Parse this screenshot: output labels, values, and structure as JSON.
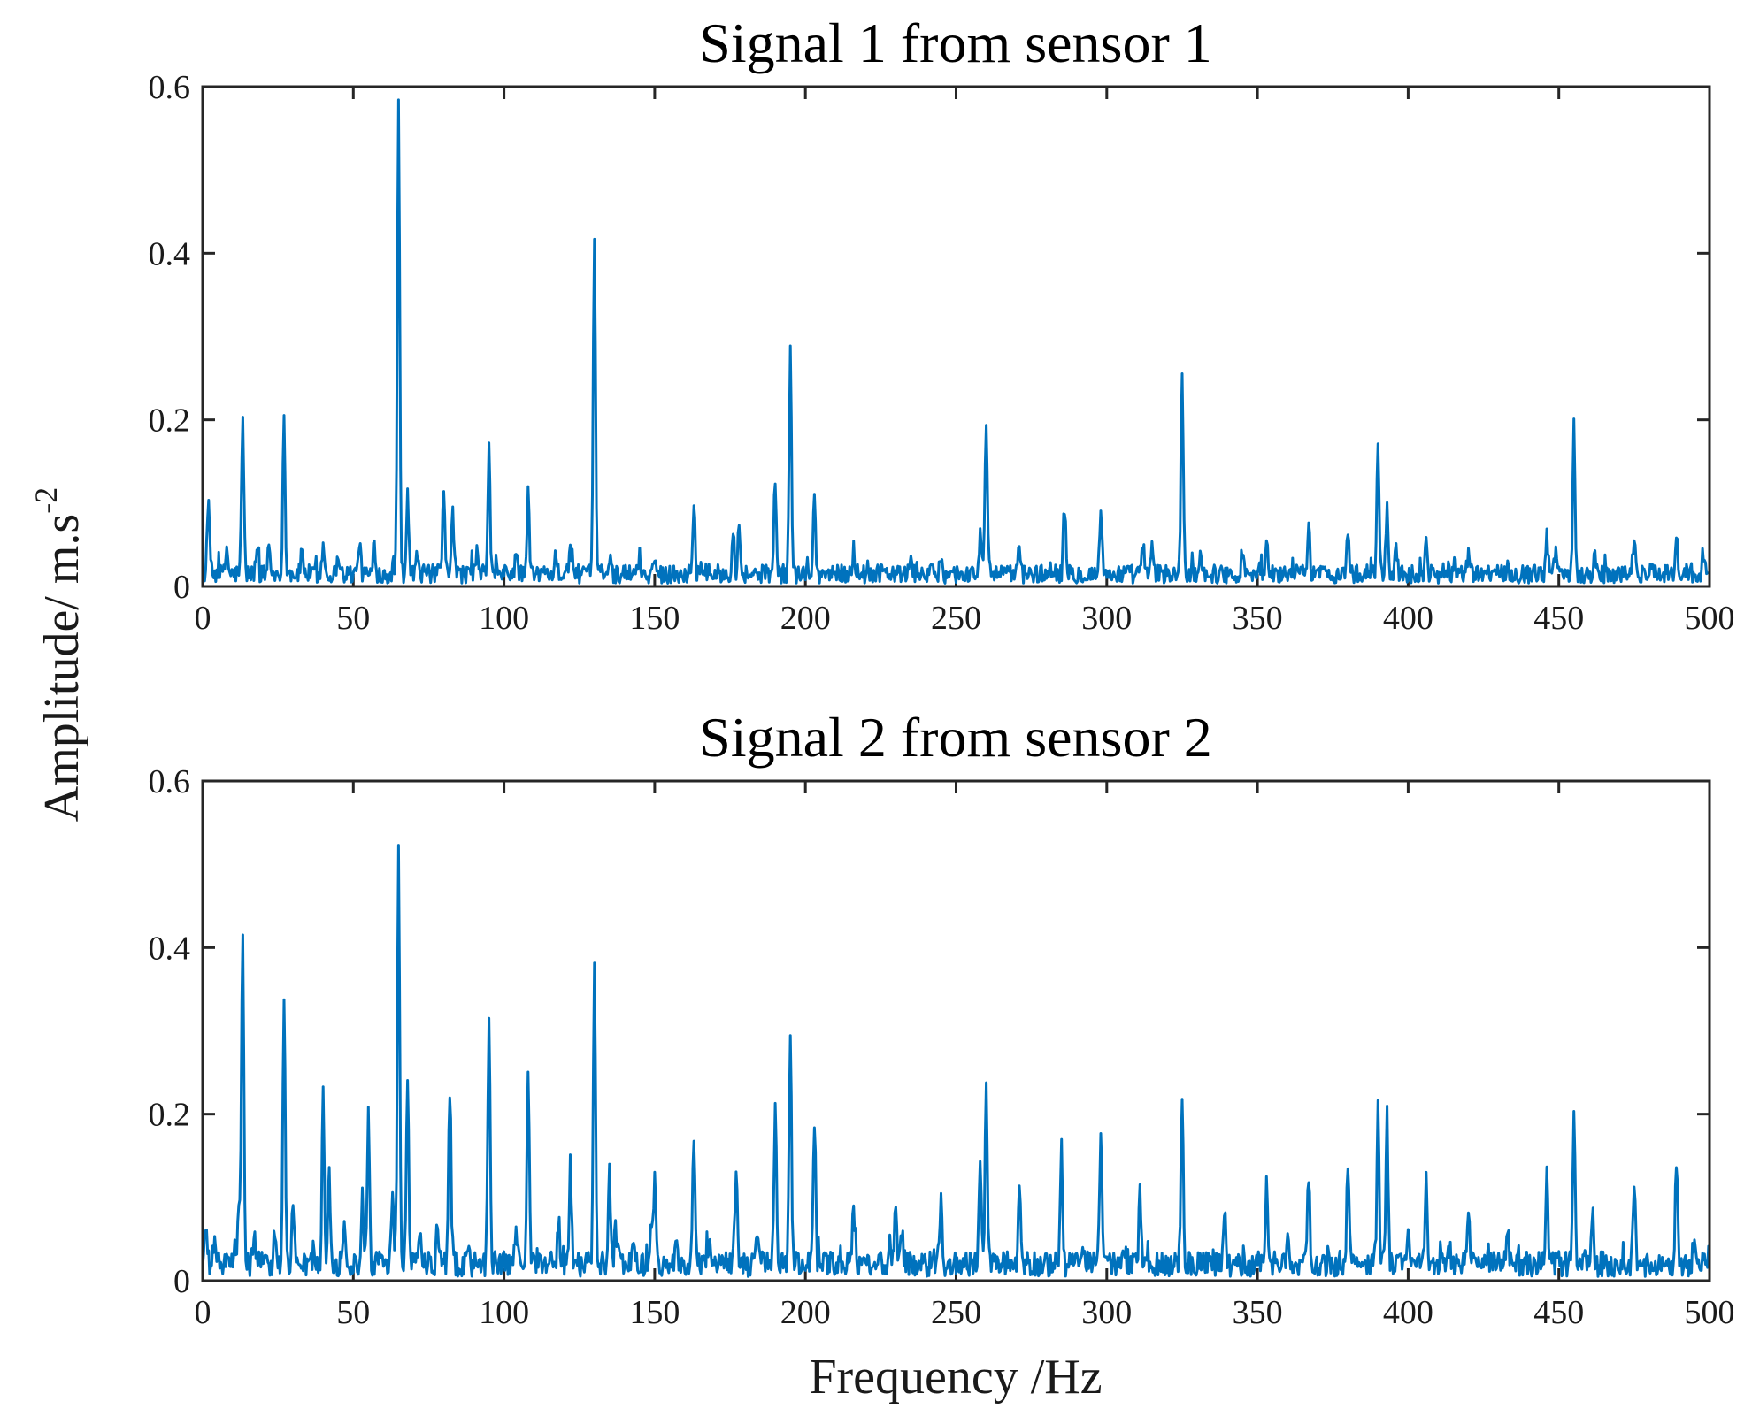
{
  "chart_data": [
    {
      "type": "line",
      "title": "Signal 1 from sensor 1",
      "xlabel": "Frequency /Hz",
      "ylabel": "Amplitude/ m.s",
      "ylabel_sup": "-2",
      "xlim": [
        0,
        500
      ],
      "ylim": [
        0,
        0.6
      ],
      "xticks": [
        0,
        50,
        100,
        150,
        200,
        250,
        300,
        350,
        400,
        450,
        500
      ],
      "xtick_labels": [
        "0",
        "50",
        "100",
        "150",
        "200",
        "250",
        "300",
        "350",
        "400",
        "450",
        "500"
      ],
      "yticks": [
        0,
        0.2,
        0.4,
        0.6
      ],
      "ytick_labels": [
        "0",
        "0.2",
        "0.4",
        "0.6"
      ],
      "color": "#0072BD",
      "baseline": 0.015,
      "peaks": [
        [
          2,
          0.093
        ],
        [
          8,
          0.04
        ],
        [
          13.3,
          0.195
        ],
        [
          18,
          0.04
        ],
        [
          22,
          0.045
        ],
        [
          27,
          0.19
        ],
        [
          33,
          0.04
        ],
        [
          40,
          0.045
        ],
        [
          45,
          0.035
        ],
        [
          52,
          0.05
        ],
        [
          57,
          0.035
        ],
        [
          65,
          0.585
        ],
        [
          68,
          0.112
        ],
        [
          71,
          0.035
        ],
        [
          80,
          0.105
        ],
        [
          83,
          0.08
        ],
        [
          91,
          0.035
        ],
        [
          95,
          0.158
        ],
        [
          104,
          0.035
        ],
        [
          108,
          0.103
        ],
        [
          117,
          0.04
        ],
        [
          122,
          0.045
        ],
        [
          130,
          0.4
        ],
        [
          135,
          0.03
        ],
        [
          145,
          0.03
        ],
        [
          150,
          0.03
        ],
        [
          163,
          0.093
        ],
        [
          176,
          0.065
        ],
        [
          178,
          0.07
        ],
        [
          190,
          0.11
        ],
        [
          195,
          0.275
        ],
        [
          203,
          0.102
        ],
        [
          216,
          0.04
        ],
        [
          235,
          0.03
        ],
        [
          245,
          0.03
        ],
        [
          258,
          0.055
        ],
        [
          260,
          0.197
        ],
        [
          271,
          0.048
        ],
        [
          286,
          0.085
        ],
        [
          298,
          0.09
        ],
        [
          312,
          0.045
        ],
        [
          315,
          0.04
        ],
        [
          325,
          0.252
        ],
        [
          331,
          0.04
        ],
        [
          345,
          0.03
        ],
        [
          353,
          0.045
        ],
        [
          367,
          0.077
        ],
        [
          380,
          0.058
        ],
        [
          390,
          0.163
        ],
        [
          393,
          0.088
        ],
        [
          396,
          0.045
        ],
        [
          406,
          0.045
        ],
        [
          420,
          0.03
        ],
        [
          433,
          0.025
        ],
        [
          446,
          0.055
        ],
        [
          449,
          0.04
        ],
        [
          455,
          0.187
        ],
        [
          462,
          0.03
        ],
        [
          475,
          0.045
        ],
        [
          489,
          0.058
        ],
        [
          498,
          0.025
        ]
      ]
    },
    {
      "type": "line",
      "title": "Signal 2 from sensor 2",
      "xlabel": "Frequency /Hz",
      "ylabel": "Amplitude/ m.s",
      "ylabel_sup": "-2",
      "xlim": [
        0,
        500
      ],
      "ylim": [
        0,
        0.6
      ],
      "xticks": [
        0,
        50,
        100,
        150,
        200,
        250,
        300,
        350,
        400,
        450,
        500
      ],
      "xtick_labels": [
        "0",
        "50",
        "100",
        "150",
        "200",
        "250",
        "300",
        "350",
        "400",
        "450",
        "500"
      ],
      "yticks": [
        0,
        0.2,
        0.4,
        0.6
      ],
      "ytick_labels": [
        "0",
        "0.2",
        "0.4",
        "0.6"
      ],
      "color": "#0072BD",
      "baseline": 0.02,
      "peaks": [
        [
          1,
          0.055
        ],
        [
          4,
          0.045
        ],
        [
          12,
          0.08
        ],
        [
          13.3,
          0.415
        ],
        [
          17,
          0.05
        ],
        [
          24,
          0.05
        ],
        [
          27,
          0.332
        ],
        [
          30,
          0.085
        ],
        [
          40,
          0.218
        ],
        [
          42,
          0.115
        ],
        [
          47,
          0.05
        ],
        [
          53,
          0.1
        ],
        [
          55,
          0.202
        ],
        [
          59,
          0.03
        ],
        [
          63,
          0.09
        ],
        [
          65,
          0.522
        ],
        [
          68,
          0.242
        ],
        [
          72,
          0.04
        ],
        [
          78,
          0.06
        ],
        [
          82,
          0.225
        ],
        [
          88,
          0.04
        ],
        [
          95,
          0.305
        ],
        [
          104,
          0.06
        ],
        [
          108,
          0.233
        ],
        [
          118,
          0.05
        ],
        [
          122,
          0.135
        ],
        [
          130,
          0.37
        ],
        [
          135,
          0.125
        ],
        [
          137,
          0.06
        ],
        [
          143,
          0.04
        ],
        [
          149,
          0.06
        ],
        [
          150,
          0.11
        ],
        [
          157,
          0.04
        ],
        [
          163,
          0.163
        ],
        [
          168,
          0.04
        ],
        [
          177,
          0.128
        ],
        [
          184,
          0.04
        ],
        [
          190,
          0.208
        ],
        [
          195,
          0.298
        ],
        [
          203,
          0.185
        ],
        [
          216,
          0.085
        ],
        [
          228,
          0.04
        ],
        [
          230,
          0.08
        ],
        [
          232,
          0.05
        ],
        [
          245,
          0.088
        ],
        [
          258,
          0.135
        ],
        [
          260,
          0.23
        ],
        [
          271,
          0.1
        ],
        [
          285,
          0.147
        ],
        [
          292,
          0.03
        ],
        [
          298,
          0.167
        ],
        [
          306,
          0.03
        ],
        [
          311,
          0.098
        ],
        [
          325,
          0.222
        ],
        [
          339,
          0.072
        ],
        [
          353,
          0.105
        ],
        [
          360,
          0.04
        ],
        [
          367,
          0.12
        ],
        [
          380,
          0.133
        ],
        [
          390,
          0.198
        ],
        [
          393,
          0.178
        ],
        [
          400,
          0.04
        ],
        [
          406,
          0.117
        ],
        [
          420,
          0.072
        ],
        [
          433,
          0.06
        ],
        [
          446,
          0.115
        ],
        [
          455,
          0.19
        ],
        [
          461,
          0.075
        ],
        [
          475,
          0.118
        ],
        [
          489,
          0.14
        ],
        [
          495,
          0.035
        ],
        [
          500,
          0.03
        ]
      ]
    }
  ]
}
